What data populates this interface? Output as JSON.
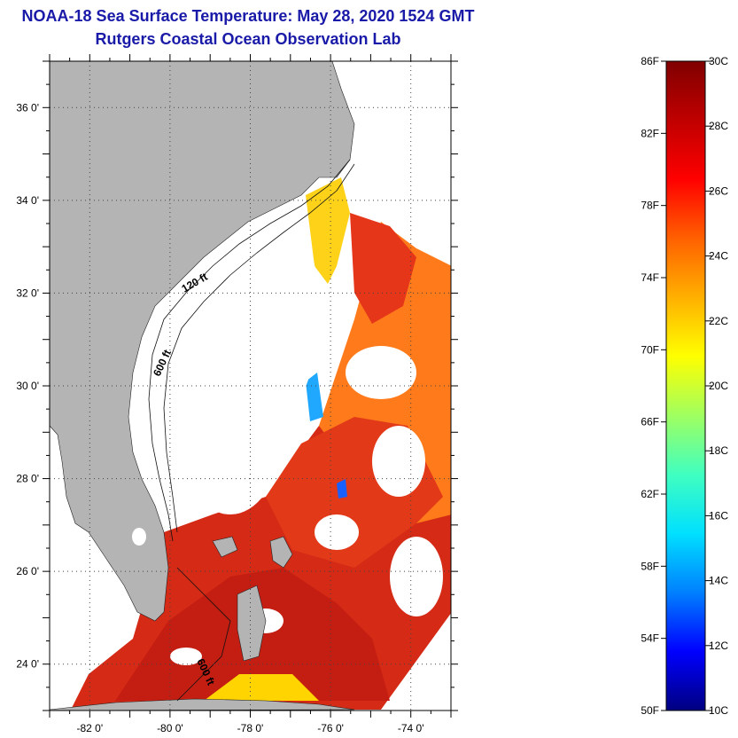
{
  "title": "NOAA-18 Sea Surface Temperature:  May 28, 2020 1524 GMT",
  "subtitle": "Rutgers Coastal Ocean Observation Lab",
  "map": {
    "lat_ticks": [
      "36 0'",
      "34 0'",
      "32 0'",
      "30 0'",
      "28 0'",
      "26 0'",
      "24 0'"
    ],
    "lat_values": [
      36,
      34,
      32,
      30,
      28,
      26,
      24
    ],
    "lon_ticks": [
      "-82 0'",
      "-80 0'",
      "-78 0'",
      "-76 0'",
      "-74 0'"
    ],
    "lon_values": [
      -82,
      -80,
      -78,
      -76,
      -74
    ],
    "lon_range": [
      -83,
      -73
    ],
    "lat_range": [
      23,
      37
    ],
    "contour_labels": [
      "120 ft",
      "600 ft",
      "600 ft"
    ],
    "land_color": "#b4b4b4",
    "cloud_color": "#ffffff"
  },
  "colorbar": {
    "f_labels": [
      "86F",
      "82F",
      "78F",
      "74F",
      "70F",
      "66F",
      "62F",
      "58F",
      "54F",
      "50F"
    ],
    "c_labels": [
      "30C",
      "28C",
      "26C",
      "24C",
      "22C",
      "20C",
      "18C",
      "16C",
      "14C",
      "12C",
      "10C"
    ],
    "range_c": [
      10,
      30
    ],
    "colors": [
      "#000080",
      "#0000ff",
      "#0080ff",
      "#00e0ff",
      "#40ffc0",
      "#a0ff60",
      "#ffff00",
      "#ffb000",
      "#ff6000",
      "#ff0000",
      "#c00000",
      "#800000"
    ]
  }
}
